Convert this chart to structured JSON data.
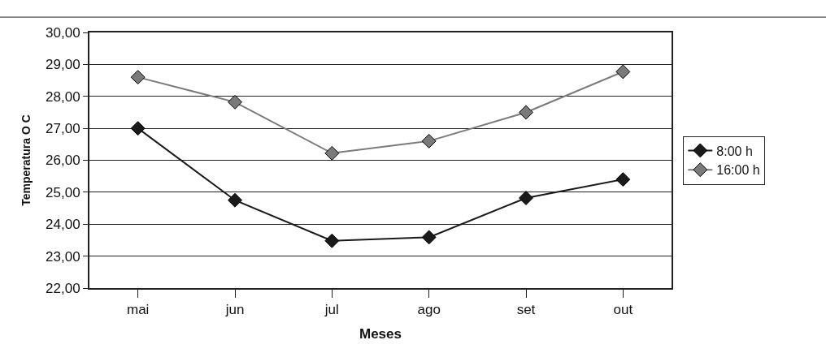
{
  "chart_data": {
    "type": "line",
    "xlabel": "Meses",
    "ylabel": "Temperatura O C",
    "categories": [
      "mai",
      "jun",
      "jul",
      "ago",
      "set",
      "out"
    ],
    "series": [
      {
        "name": "8:00 h",
        "color": "#1a1a1a",
        "values": [
          27.0,
          24.75,
          23.48,
          23.59,
          24.82,
          25.4
        ]
      },
      {
        "name": "16:00 h",
        "color": "#7a7a7a",
        "values": [
          28.6,
          27.82,
          26.22,
          26.6,
          27.5,
          28.77
        ]
      }
    ],
    "ylim": [
      22,
      30
    ],
    "yticks": [
      {
        "value": 22,
        "label": "22,00"
      },
      {
        "value": 23,
        "label": "23,00"
      },
      {
        "value": 24,
        "label": "24,00"
      },
      {
        "value": 25,
        "label": "25,00"
      },
      {
        "value": 26,
        "label": "26,00"
      },
      {
        "value": 27,
        "label": "27,00"
      },
      {
        "value": 28,
        "label": "28,00"
      },
      {
        "value": 29,
        "label": "29,00"
      },
      {
        "value": 30,
        "label": "30,00"
      }
    ],
    "grid": "y",
    "legend": "right",
    "marker": "diamond",
    "line_style": "solid"
  }
}
